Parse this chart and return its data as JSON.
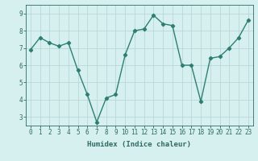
{
  "x": [
    0,
    1,
    2,
    3,
    4,
    5,
    6,
    7,
    8,
    9,
    10,
    11,
    12,
    13,
    14,
    15,
    16,
    17,
    18,
    19,
    20,
    21,
    22,
    23
  ],
  "y": [
    6.9,
    7.6,
    7.3,
    7.1,
    7.3,
    5.7,
    4.3,
    2.7,
    4.1,
    4.3,
    6.6,
    8.0,
    8.1,
    8.9,
    8.4,
    8.3,
    6.0,
    6.0,
    3.9,
    6.4,
    6.5,
    7.0,
    7.6,
    8.6
  ],
  "line_color": "#2e7f72",
  "marker": "D",
  "marker_size": 2.2,
  "bg_color": "#d6f0ef",
  "grid_color": "#b8d8d6",
  "xlabel": "Humidex (Indice chaleur)",
  "ylim": [
    2.5,
    9.5
  ],
  "xlim": [
    -0.5,
    23.5
  ],
  "yticks": [
    3,
    4,
    5,
    6,
    7,
    8,
    9
  ],
  "xticks": [
    0,
    1,
    2,
    3,
    4,
    5,
    6,
    7,
    8,
    9,
    10,
    11,
    12,
    13,
    14,
    15,
    16,
    17,
    18,
    19,
    20,
    21,
    22,
    23
  ],
  "tick_color": "#2e6b60",
  "axis_color": "#2e6b60",
  "xlabel_fontsize": 6.5,
  "tick_fontsize": 5.5,
  "linewidth": 1.0
}
